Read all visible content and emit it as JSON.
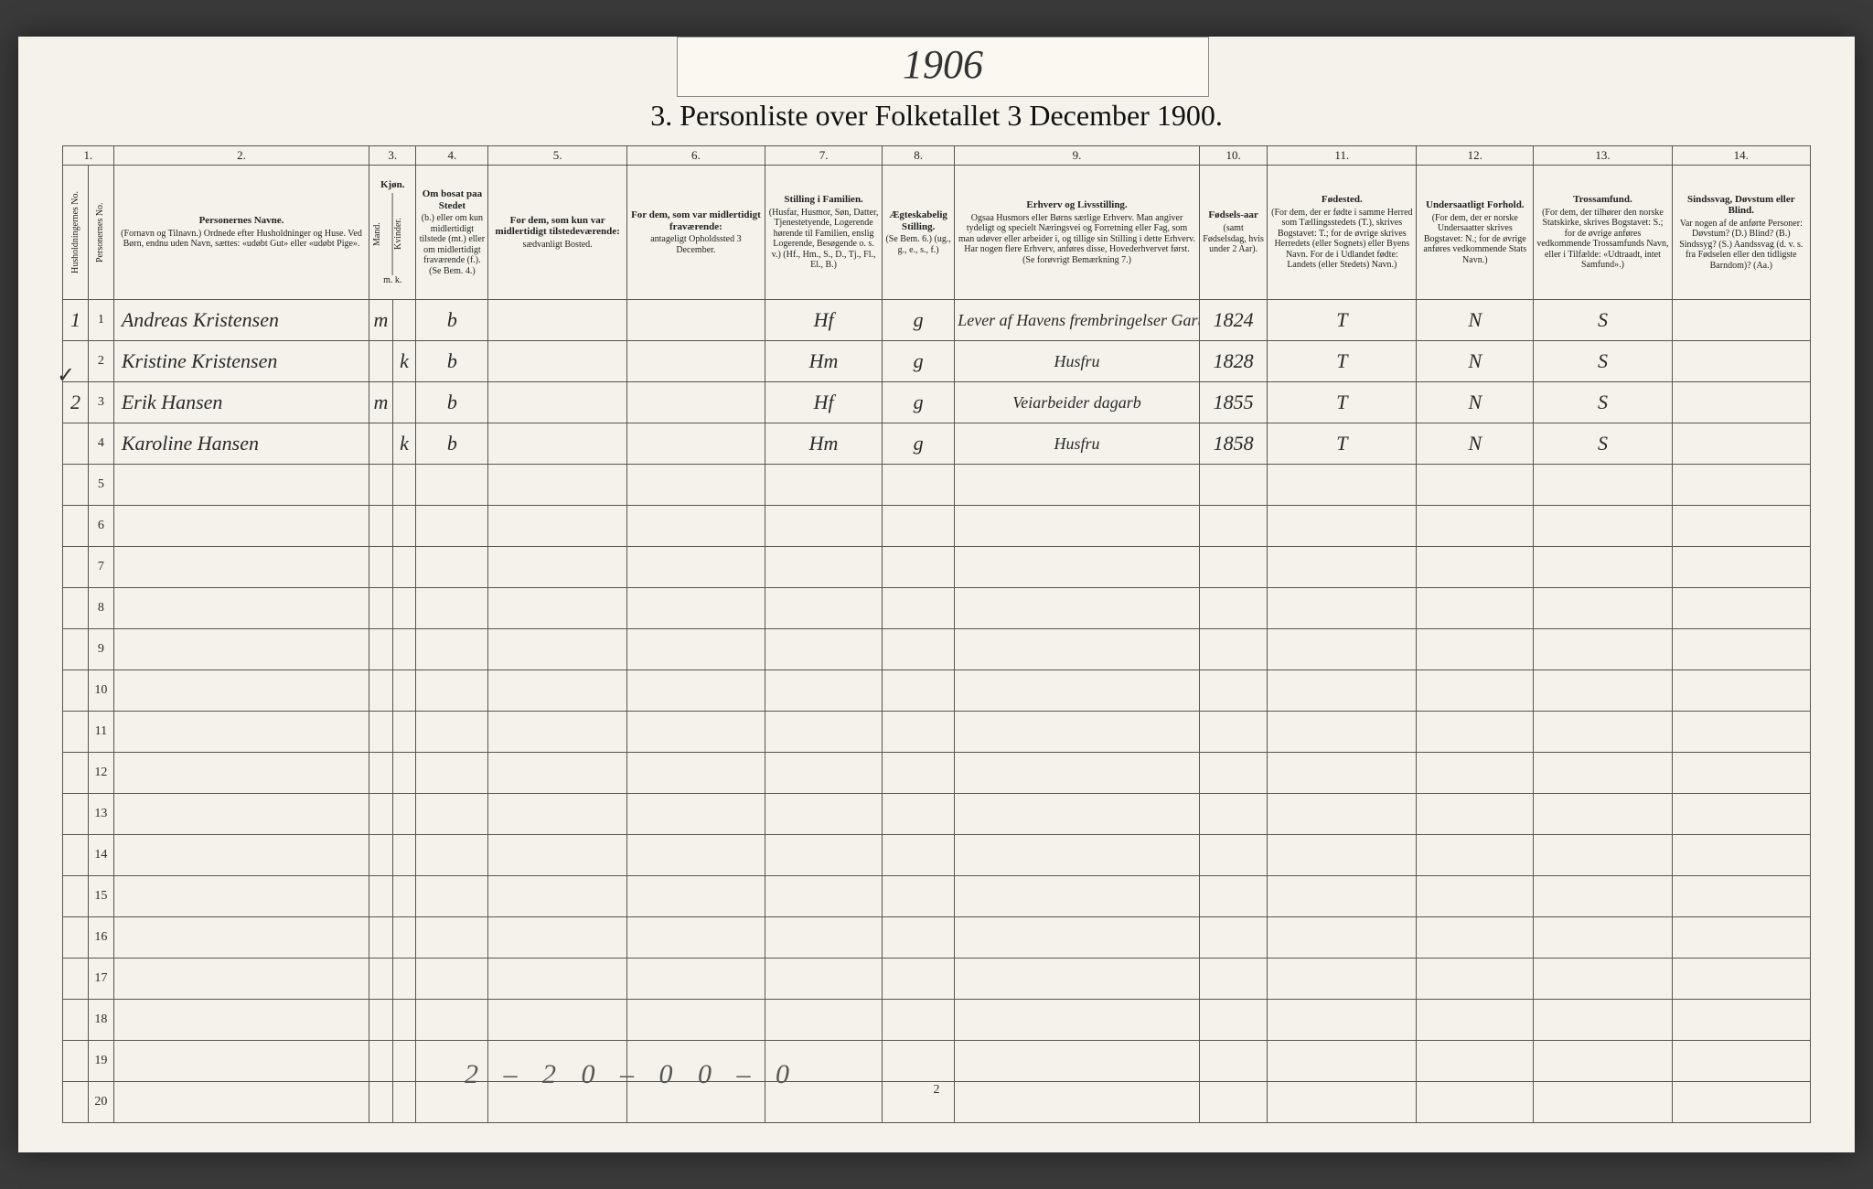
{
  "tab_year": "1906",
  "title": "3.  Personliste over Folketallet 3 December 1900.",
  "column_numbers": [
    "1.",
    "2.",
    "3.",
    "4.",
    "5.",
    "6.",
    "7.",
    "8.",
    "9.",
    "10.",
    "11.",
    "12.",
    "13.",
    "14."
  ],
  "headers": {
    "c1a": "Husholdningernes No.",
    "c1b": "Personernes No.",
    "c2": {
      "main": "Personernes Navne.",
      "sub": "(Fornavn og Tilnavn.)\nOrdnede efter Husholdninger og Huse.\nVed Børn, endnu uden Navn, sættes: «udøbt Gut» eller «udøbt Pige»."
    },
    "c3": {
      "main": "Kjøn.",
      "sub_m": "Mand.",
      "sub_k": "Kvinder.",
      "mk": "m.  k."
    },
    "c4": {
      "main": "Om bosat paa Stedet",
      "sub": "(b.) eller om kun midlertidigt tilstede (mt.) eller om midlertidigt fraværende (f.).\n(Se Bem. 4.)"
    },
    "c5": {
      "main": "For dem, som kun var midlertidigt tilstedeværende:",
      "sub": "sædvanligt Bosted."
    },
    "c6": {
      "main": "For dem, som var midlertidigt fraværende:",
      "sub": "antageligt Opholdssted 3 December."
    },
    "c7": {
      "main": "Stilling i Familien.",
      "sub": "(Husfar, Husmor, Søn, Datter, Tjenestetyende, Logerende hørende til Familien, enslig Logerende, Besøgende o. s. v.)\n(Hf., Hm., S., D., Tj., Fl., El., B.)"
    },
    "c8": {
      "main": "Ægteskabelig Stilling.",
      "sub": "(Se Bem. 6.)\n(ug., g., e., s., f.)"
    },
    "c9": {
      "main": "Erhverv og Livsstilling.",
      "sub": "Ogsaa Husmors eller Børns særlige Erhverv. Man angiver tydeligt og specielt Næringsvei og Forretning eller Fag, som man udøver eller arbeider i, og tillige sin Stilling i dette Erhverv. Har nogen flere Erhverv, anføres disse, Hovederhvervet først.\n(Se forøvrigt Bemærkning 7.)"
    },
    "c10": {
      "main": "Fødsels-aar",
      "sub": "(samt Fødselsdag, hvis under 2 Aar)."
    },
    "c11": {
      "main": "Fødested.",
      "sub": "(For dem, der er fødte i samme Herred som Tællingsstedets (T.), skrives Bogstavet: T.; for de øvrige skrives Herredets (eller Sognets) eller Byens Navn. For de i Udlandet fødte: Landets (eller Stedets) Navn.)"
    },
    "c12": {
      "main": "Undersaatligt Forhold.",
      "sub": "(For dem, der er norske Undersaatter skrives Bogstavet: N.; for de øvrige anføres vedkommende Stats Navn.)"
    },
    "c13": {
      "main": "Trossamfund.",
      "sub": "(For dem, der tilhører den norske Statskirke, skrives Bogstavet: S.; for de øvrige anføres vedkommende Trossamfunds Navn, eller i Tilfælde: «Udtraadt, intet Samfund».)"
    },
    "c14": {
      "main": "Sindssvag, Døvstum eller Blind.",
      "sub": "Var nogen af de anførte Personer:\nDøvstum? (D.)\nBlind? (B.)\nSindssyg? (S.)\nAandssvag (d. v. s. fra Fødselen eller den tidligste Barndom)? (Aa.)"
    }
  },
  "rows": [
    {
      "hh": "1",
      "pno": "1",
      "name": "Andreas Kristensen",
      "sex": "m",
      "res": "b",
      "fam": "Hf",
      "mar": "g",
      "occ": "Lever af Havens frembringelser Gartner",
      "year": "1824",
      "born": "T",
      "nat": "N",
      "rel": "S"
    },
    {
      "hh": "",
      "pno": "2",
      "name": "Kristine Kristensen",
      "sex": "k",
      "res": "b",
      "fam": "Hm",
      "mar": "g",
      "occ": "Husfru",
      "year": "1828",
      "born": "T",
      "nat": "N",
      "rel": "S"
    },
    {
      "hh": "2",
      "pno": "3",
      "name": "Erik Hansen",
      "sex": "m",
      "res": "b",
      "fam": "Hf",
      "mar": "g",
      "occ": "Veiarbeider dagarb",
      "year": "1855",
      "born": "T",
      "nat": "N",
      "rel": "S"
    },
    {
      "hh": "",
      "pno": "4",
      "name": "Karoline Hansen",
      "sex": "k",
      "res": "b",
      "fam": "Hm",
      "mar": "g",
      "occ": "Husfru",
      "year": "1858",
      "born": "T",
      "nat": "N",
      "rel": "S"
    }
  ],
  "blank_rows": 16,
  "row_check_mark": "✓",
  "footer_tally": "2 – 2   0 – 0    0 – 0",
  "page_number": "2",
  "col_widths": [
    "24px",
    "24px",
    "240px",
    "22px",
    "22px",
    "68px",
    "130px",
    "130px",
    "110px",
    "68px",
    "230px",
    "64px",
    "140px",
    "110px",
    "130px",
    "130px"
  ]
}
